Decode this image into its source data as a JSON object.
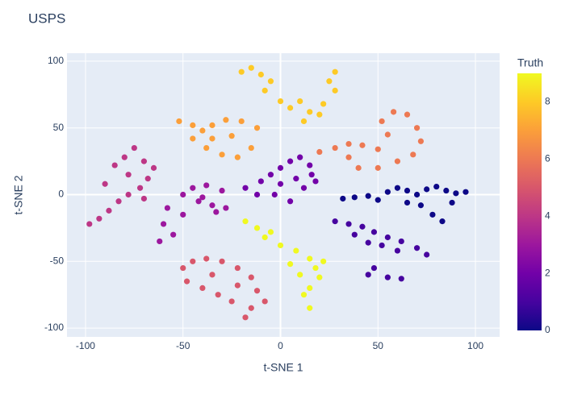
{
  "chart_data": {
    "type": "scatter",
    "title": "USPS",
    "x_label": "t-SNE 1",
    "y_label": "t-SNE 2",
    "xlim": [
      -109.5,
      112.4
    ],
    "ylim": [
      -106.6,
      106
    ],
    "xticks": [
      -100,
      -50,
      0,
      50,
      100
    ],
    "yticks": [
      -100,
      -50,
      0,
      50,
      100
    ],
    "grid": true,
    "colorbar": {
      "title": "Truth",
      "clim": [
        0,
        9
      ],
      "ticks": [
        0,
        2,
        4,
        6,
        8
      ],
      "colorscale": [
        "#0d0887",
        "#46039f",
        "#7201a8",
        "#9c179e",
        "#bd3786",
        "#d8576b",
        "#ed7953",
        "#fb9f3a",
        "#fdca26",
        "#f0f921"
      ]
    },
    "groups": [
      {
        "truth": 0,
        "x": [
          32,
          38,
          45,
          50,
          55,
          60,
          65,
          70,
          75,
          80,
          85,
          90,
          95,
          72,
          78,
          83,
          65,
          88
        ],
        "y": [
          -3,
          -2,
          -1,
          -4,
          2,
          5,
          3,
          0,
          4,
          6,
          3,
          1,
          2,
          -8,
          -15,
          -20,
          -6,
          -6
        ]
      },
      {
        "truth": 1,
        "x": [
          28,
          35,
          42,
          48,
          55,
          62,
          70,
          75,
          38,
          45,
          52,
          60,
          45,
          55,
          62,
          48
        ],
        "y": [
          -20,
          -22,
          -24,
          -28,
          -32,
          -35,
          -40,
          -45,
          -30,
          -36,
          -38,
          -42,
          -60,
          -62,
          -63,
          -55
        ]
      },
      {
        "truth": 2,
        "x": [
          -18,
          -10,
          -5,
          0,
          5,
          10,
          15,
          18,
          12,
          5,
          -3,
          -12,
          8,
          0,
          16
        ],
        "y": [
          5,
          10,
          15,
          20,
          25,
          28,
          22,
          10,
          5,
          -5,
          0,
          0,
          12,
          8,
          15
        ]
      },
      {
        "truth": 3,
        "x": [
          -55,
          -60,
          -58,
          -50,
          -45,
          -38,
          -30,
          -28,
          -35,
          -42,
          -50,
          -62,
          -40,
          -33
        ],
        "y": [
          -30,
          -22,
          -10,
          0,
          5,
          7,
          3,
          -10,
          -8,
          -5,
          -15,
          -35,
          -2,
          -13
        ]
      },
      {
        "truth": 4,
        "x": [
          -98,
          -93,
          -88,
          -83,
          -78,
          -72,
          -68,
          -65,
          -70,
          -75,
          -80,
          -85,
          -90,
          -78,
          -70
        ],
        "y": [
          -22,
          -18,
          -12,
          -5,
          0,
          5,
          12,
          20,
          25,
          35,
          28,
          22,
          8,
          15,
          -3
        ]
      },
      {
        "truth": 5,
        "x": [
          -50,
          -45,
          -38,
          -30,
          -22,
          -15,
          -12,
          -15,
          -18,
          -25,
          -32,
          -40,
          -48,
          -35,
          -22,
          -8
        ],
        "y": [
          -55,
          -50,
          -48,
          -50,
          -55,
          -62,
          -72,
          -85,
          -92,
          -80,
          -75,
          -70,
          -65,
          -60,
          -68,
          -80
        ]
      },
      {
        "truth": 6,
        "x": [
          20,
          28,
          35,
          42,
          50,
          55,
          52,
          58,
          65,
          70,
          72,
          68,
          60,
          50,
          40,
          35
        ],
        "y": [
          32,
          35,
          38,
          37,
          34,
          45,
          55,
          62,
          60,
          50,
          40,
          30,
          25,
          20,
          20,
          28
        ]
      },
      {
        "truth": 7,
        "x": [
          -52,
          -45,
          -40,
          -35,
          -28,
          -20,
          -12,
          -45,
          -38,
          -30,
          -22,
          -15,
          -35,
          -25
        ],
        "y": [
          55,
          52,
          48,
          52,
          56,
          55,
          50,
          42,
          35,
          30,
          28,
          35,
          42,
          44
        ]
      },
      {
        "truth": 8,
        "x": [
          -20,
          -15,
          -10,
          -5,
          0,
          5,
          10,
          15,
          22,
          28,
          25,
          28,
          20,
          12,
          -8
        ],
        "y": [
          92,
          95,
          90,
          85,
          70,
          65,
          70,
          62,
          68,
          78,
          85,
          92,
          60,
          55,
          78
        ]
      },
      {
        "truth": 9,
        "x": [
          -18,
          -12,
          -8,
          0,
          8,
          15,
          18,
          20,
          15,
          12,
          15,
          10,
          5,
          -5,
          22
        ],
        "y": [
          -20,
          -25,
          -32,
          -38,
          -42,
          -48,
          -55,
          -62,
          -70,
          -75,
          -85,
          -60,
          -52,
          -28,
          -50
        ]
      }
    ]
  }
}
